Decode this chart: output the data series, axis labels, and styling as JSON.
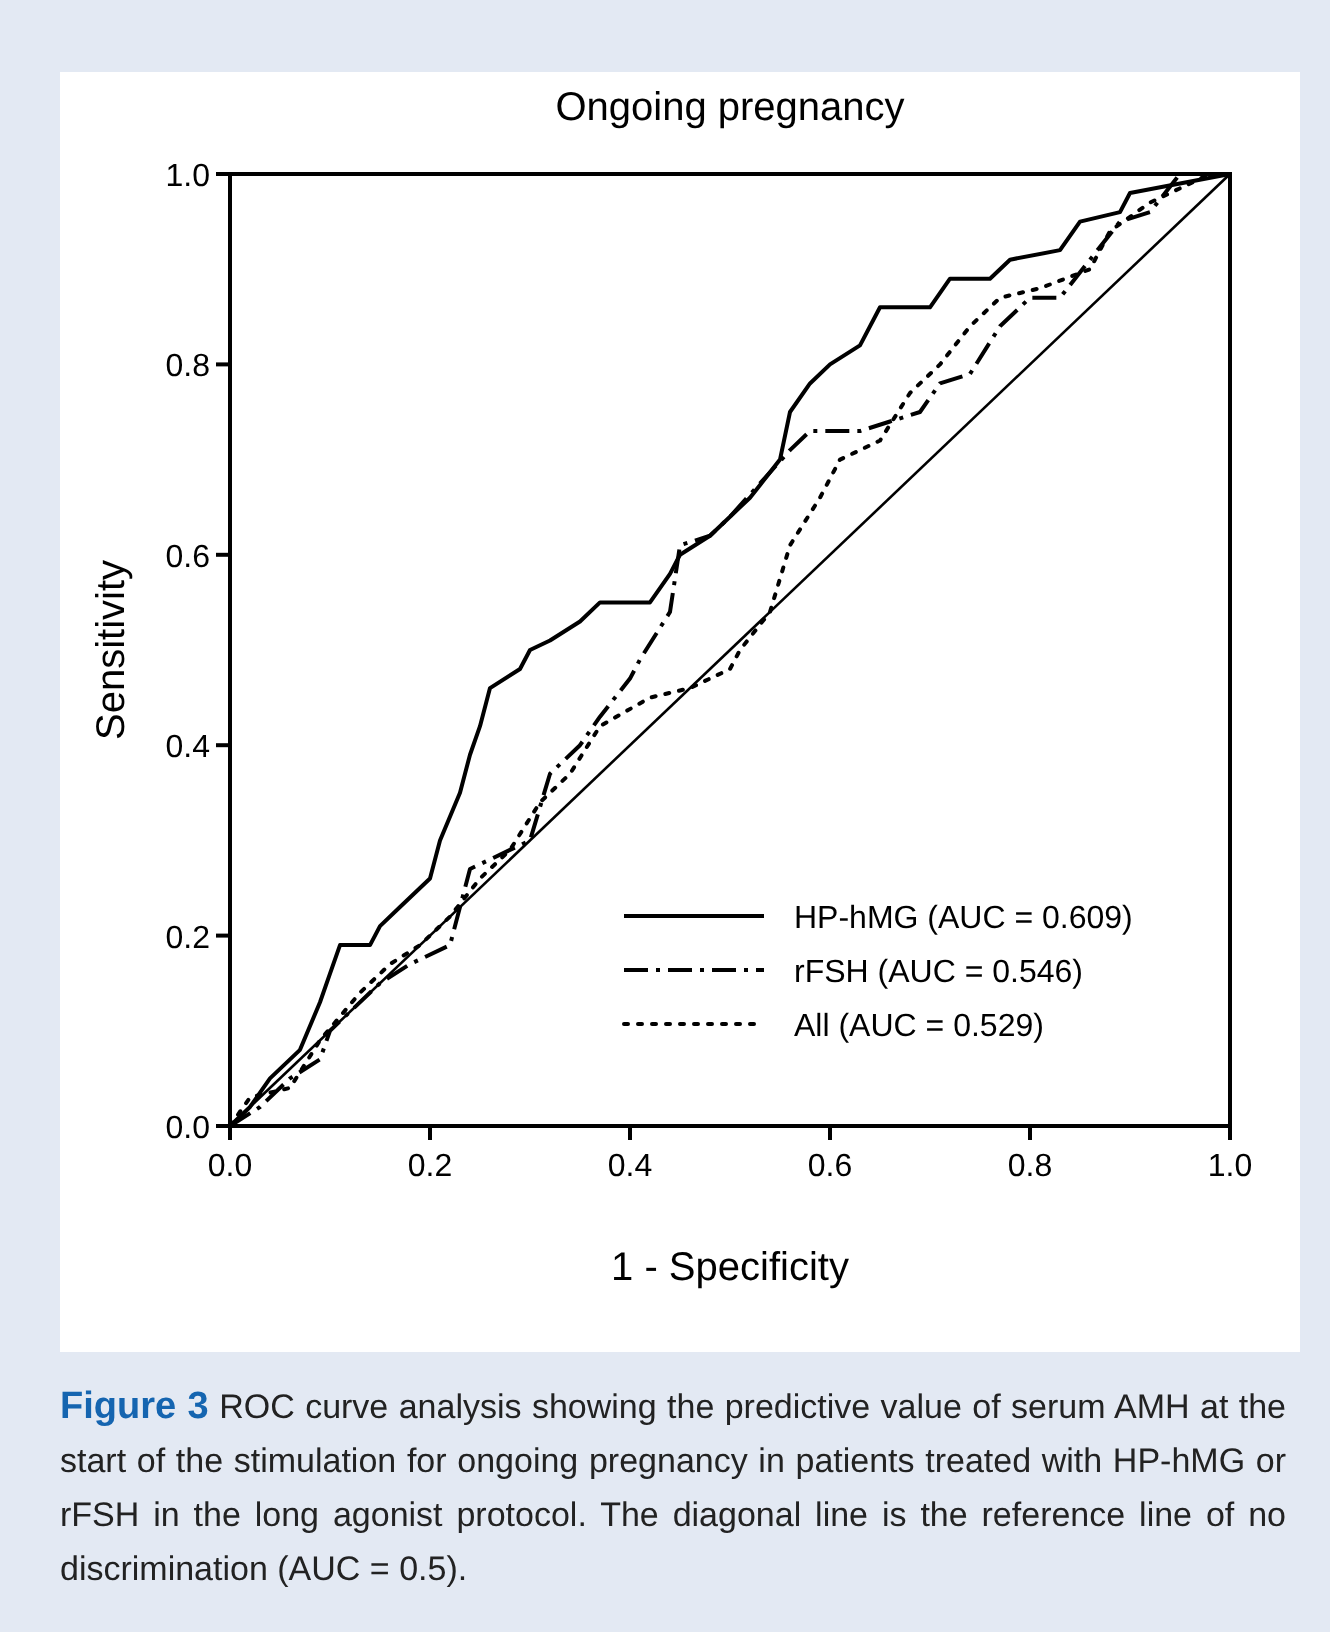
{
  "chart_data": {
    "type": "line",
    "title": "Ongoing pregnancy",
    "xlabel": "1 - Specificity",
    "ylabel": "Sensitivity",
    "xlim": [
      0,
      1
    ],
    "ylim": [
      0,
      1
    ],
    "xticks": [
      {
        "value": 0,
        "label": "0.0"
      },
      {
        "value": 0.2,
        "label": "0.2"
      },
      {
        "value": 0.4,
        "label": "0.4"
      },
      {
        "value": 0.6,
        "label": "0.6"
      },
      {
        "value": 0.8,
        "label": "0.8"
      },
      {
        "value": 1,
        "label": "1.0"
      }
    ],
    "yticks": [
      {
        "value": 0,
        "label": "0.0"
      },
      {
        "value": 0.2,
        "label": "0.2"
      },
      {
        "value": 0.4,
        "label": "0.4"
      },
      {
        "value": 0.6,
        "label": "0.6"
      },
      {
        "value": 0.8,
        "label": "0.8"
      },
      {
        "value": 1,
        "label": "1.0"
      }
    ],
    "grid": false,
    "legend": "bottom right",
    "series": [
      {
        "name": "HP-hMG (AUC = 0.609)",
        "color": "#000000",
        "line_style": "solid",
        "x": [
          0,
          0.02,
          0.04,
          0.07,
          0.09,
          0.1,
          0.11,
          0.14,
          0.15,
          0.17,
          0.2,
          0.21,
          0.23,
          0.24,
          0.25,
          0.26,
          0.29,
          0.3,
          0.32,
          0.35,
          0.37,
          0.42,
          0.44,
          0.45,
          0.48,
          0.5,
          0.52,
          0.55,
          0.56,
          0.58,
          0.6,
          0.63,
          0.65,
          0.7,
          0.72,
          0.76,
          0.78,
          0.83,
          0.85,
          0.89,
          0.9,
          0.95,
          1
        ],
        "values": [
          0,
          0.02,
          0.05,
          0.08,
          0.13,
          0.16,
          0.19,
          0.19,
          0.21,
          0.23,
          0.26,
          0.3,
          0.35,
          0.39,
          0.42,
          0.46,
          0.48,
          0.5,
          0.51,
          0.53,
          0.55,
          0.55,
          0.58,
          0.6,
          0.62,
          0.64,
          0.66,
          0.7,
          0.75,
          0.78,
          0.8,
          0.82,
          0.86,
          0.86,
          0.89,
          0.89,
          0.91,
          0.92,
          0.95,
          0.96,
          0.98,
          0.99,
          1
        ]
      },
      {
        "name": "rFSH (AUC = 0.546)",
        "color": "#000000",
        "line_style": "dashed",
        "x": [
          0,
          0.03,
          0.06,
          0.09,
          0.1,
          0.12,
          0.15,
          0.18,
          0.22,
          0.24,
          0.28,
          0.3,
          0.32,
          0.35,
          0.37,
          0.4,
          0.41,
          0.44,
          0.45,
          0.48,
          0.5,
          0.56,
          0.58,
          0.63,
          0.66,
          0.69,
          0.71,
          0.74,
          0.77,
          0.8,
          0.83,
          0.86,
          0.89,
          0.92,
          0.95,
          1
        ],
        "values": [
          0,
          0.02,
          0.05,
          0.07,
          0.1,
          0.12,
          0.15,
          0.17,
          0.19,
          0.27,
          0.29,
          0.3,
          0.37,
          0.4,
          0.43,
          0.47,
          0.49,
          0.54,
          0.61,
          0.62,
          0.64,
          0.71,
          0.73,
          0.73,
          0.74,
          0.75,
          0.78,
          0.79,
          0.84,
          0.87,
          0.87,
          0.91,
          0.95,
          0.96,
          1,
          1
        ]
      },
      {
        "name": "All (AUC = 0.529)",
        "color": "#000000",
        "line_style": "dotted",
        "x": [
          0,
          0.02,
          0.06,
          0.09,
          0.13,
          0.16,
          0.19,
          0.22,
          0.25,
          0.28,
          0.31,
          0.34,
          0.37,
          0.42,
          0.46,
          0.5,
          0.51,
          0.54,
          0.56,
          0.59,
          0.61,
          0.65,
          0.68,
          0.71,
          0.74,
          0.77,
          0.81,
          0.86,
          0.88,
          0.92,
          0.98,
          1
        ],
        "values": [
          0,
          0.03,
          0.04,
          0.09,
          0.14,
          0.17,
          0.19,
          0.22,
          0.26,
          0.29,
          0.34,
          0.37,
          0.42,
          0.45,
          0.46,
          0.48,
          0.5,
          0.54,
          0.61,
          0.66,
          0.7,
          0.72,
          0.77,
          0.8,
          0.84,
          0.87,
          0.88,
          0.9,
          0.94,
          0.97,
          1,
          1
        ]
      },
      {
        "color": "#000000",
        "line_style": "solid",
        "x": [
          0,
          1
        ],
        "values": [
          0,
          1
        ]
      }
    ],
    "annotations": [
      "Figure 3 ROC curve analysis showing the predictive value of serum AMH at the start of the stimulation for ongoing pregnancy in patients treated with HP-hMG or rFSH in the long agonist protocol. The diagonal line is the reference line of no discrimination (AUC = 0.5)."
    ]
  }
}
